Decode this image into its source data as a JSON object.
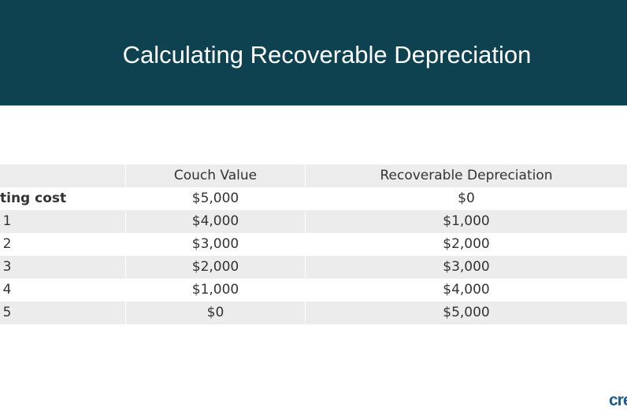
{
  "header": {
    "title": "Calculating Recoverable Depreciation"
  },
  "table": {
    "columns": [
      "Couch Value",
      "Recoverable Depreciation"
    ],
    "rows": [
      [
        "ting cost",
        "$5,000",
        "$0"
      ],
      [
        "1",
        "$4,000",
        "$1,000"
      ],
      [
        "2",
        "$3,000",
        "$2,000"
      ],
      [
        "3",
        "$2,000",
        "$3,000"
      ],
      [
        "4",
        "$1,000",
        "$4,000"
      ],
      [
        "5",
        "$0",
        "$5,000"
      ]
    ]
  },
  "logo": "cre"
}
